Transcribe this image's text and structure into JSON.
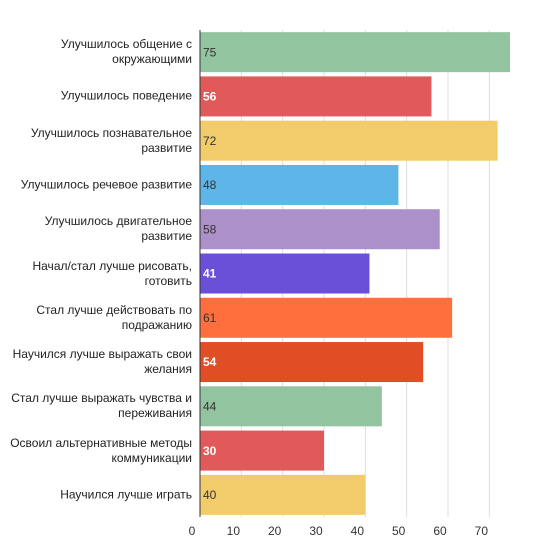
{
  "chart_data": {
    "type": "barh",
    "categories": [
      "Улучшилось общение с окружающими",
      "Улучшилось поведение",
      "Улучшилось познавательное развитие",
      "Улучшилось речевое развитие",
      "Улучшилось двигательное развитие",
      "Начал/стал лучше рисовать, готовить",
      "Стал лучше действовать по подражанию",
      "Научился лучше выражать свои желания",
      "Стал лучше выражать чувства и переживания",
      "Освоил альтернативные методы коммуникации",
      "Научился лучше играть"
    ],
    "values": [
      75,
      56,
      72,
      48,
      58,
      41,
      61,
      54,
      44,
      30,
      40
    ],
    "colors": [
      "#93c4a0",
      "#e05a5a",
      "#f2cc6b",
      "#5eb5e8",
      "#ac90c9",
      "#6a4fd9",
      "#ff6e3d",
      "#e04e25",
      "#93c4a0",
      "#e05a5a",
      "#f2cc6b"
    ],
    "value_label_colors": [
      "#333",
      "#fff",
      "#333",
      "#333",
      "#333",
      "#fff",
      "#333",
      "#fff",
      "#333",
      "#fff",
      "#333"
    ],
    "xlim": [
      0,
      75
    ],
    "xticks": [
      0,
      10,
      20,
      30,
      40,
      50,
      60,
      70
    ],
    "grid": true
  }
}
